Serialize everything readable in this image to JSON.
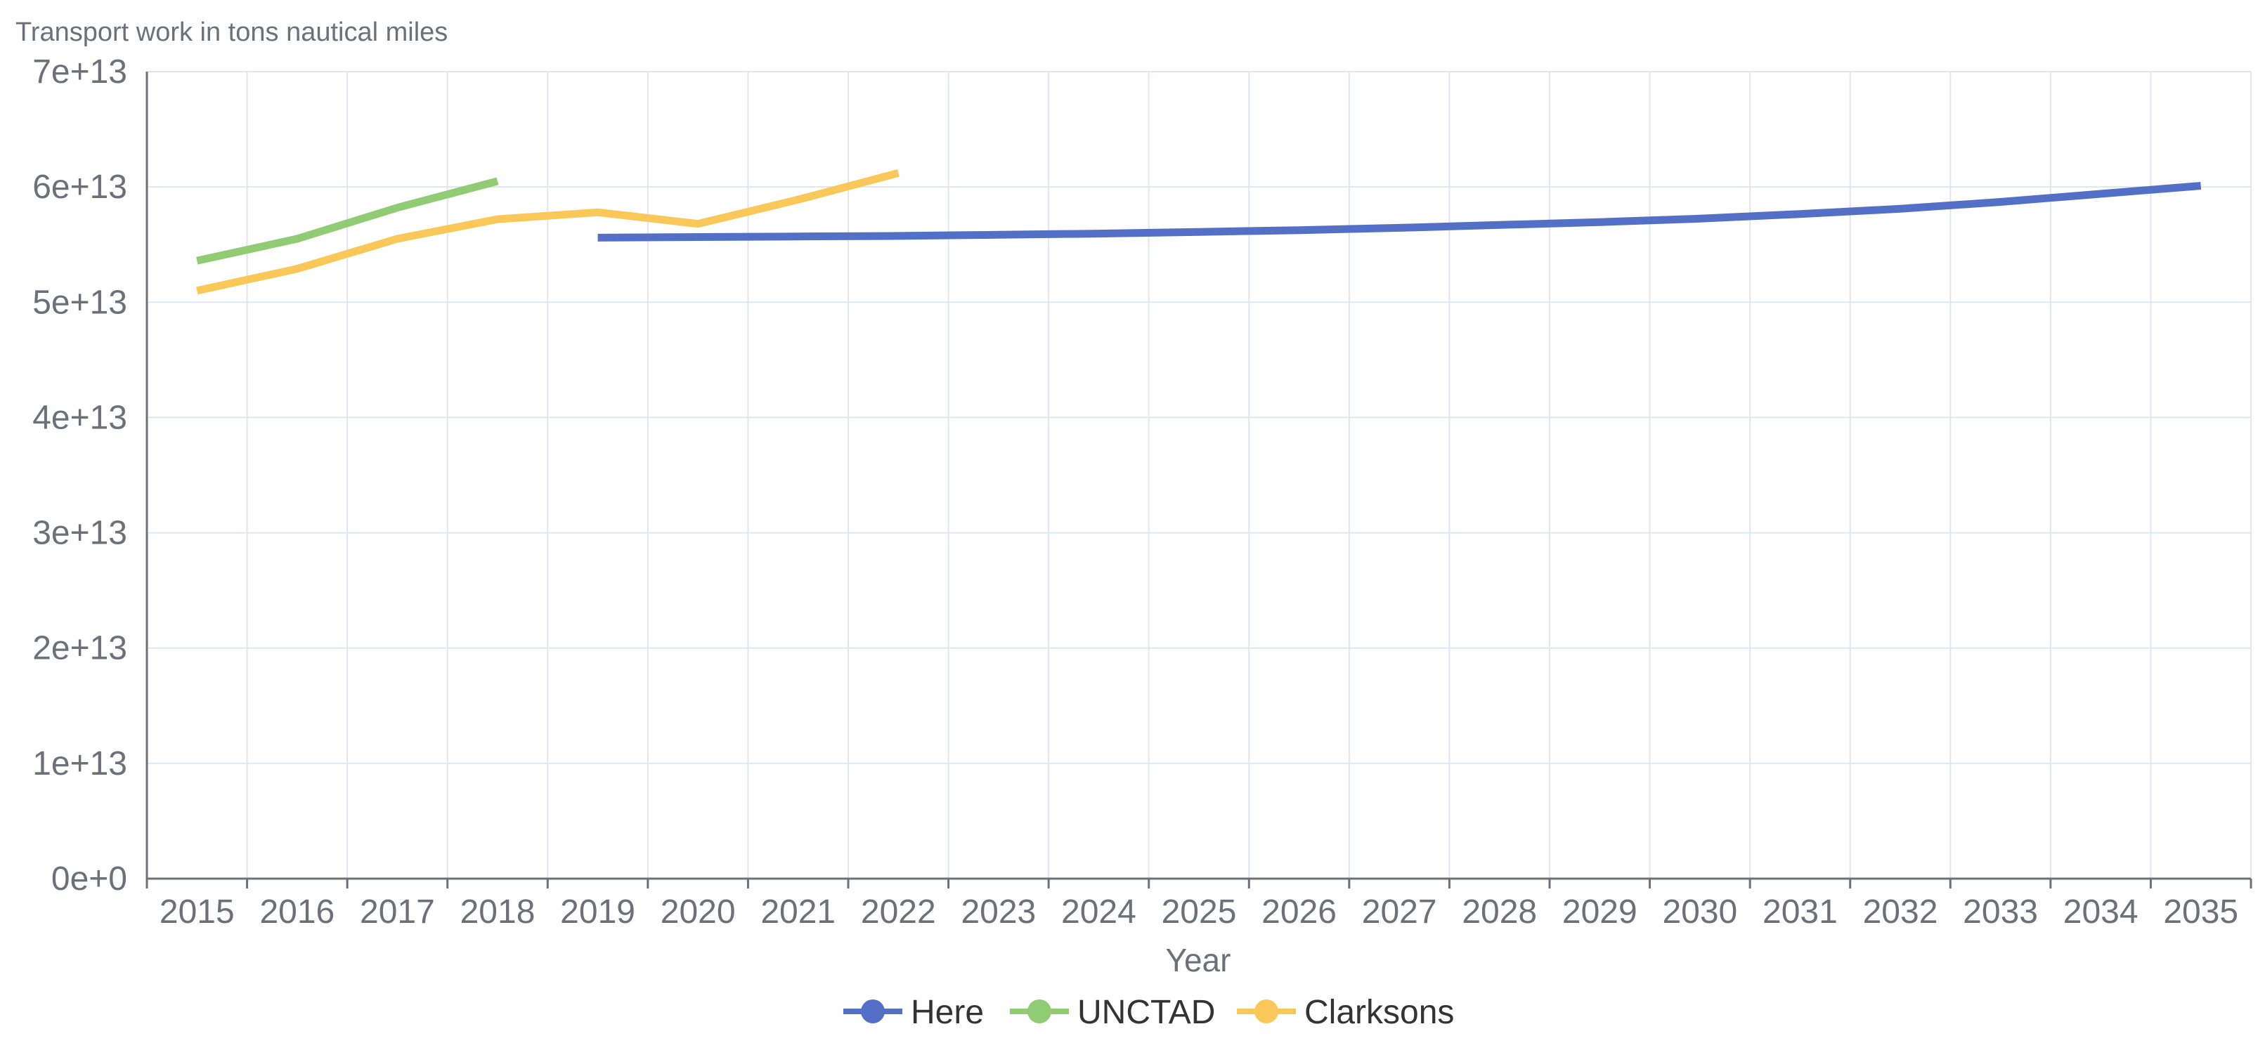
{
  "chart_data": {
    "type": "line",
    "ylabel": "Transport work in tons nautical miles",
    "xlabel": "Year",
    "categories": [
      "2015",
      "2016",
      "2017",
      "2018",
      "2019",
      "2020",
      "2021",
      "2022",
      "2023",
      "2024",
      "2025",
      "2026",
      "2027",
      "2028",
      "2029",
      "2030",
      "2031",
      "2032",
      "2033",
      "2034",
      "2035"
    ],
    "ylim": [
      0,
      70000000000000
    ],
    "yticks": [
      0,
      10000000000000,
      20000000000000,
      30000000000000,
      40000000000000,
      50000000000000,
      60000000000000,
      70000000000000
    ],
    "ytick_labels": [
      "0e+0",
      "1e+13",
      "2e+13",
      "3e+13",
      "4e+13",
      "5e+13",
      "6e+13",
      "7e+13"
    ],
    "grid": true,
    "legend_position": "bottom-center",
    "series": [
      {
        "name": "Here",
        "color": "#5470c6",
        "values": [
          null,
          null,
          null,
          null,
          55600000000000,
          55650000000000,
          55700000000000,
          55750000000000,
          55850000000000,
          55950000000000,
          56100000000000,
          56250000000000,
          56450000000000,
          56700000000000,
          56950000000000,
          57250000000000,
          57650000000000,
          58100000000000,
          58700000000000,
          59400000000000,
          60100000000000
        ]
      },
      {
        "name": "UNCTAD",
        "color": "#91cc75",
        "values": [
          53600000000000,
          55500000000000,
          58200000000000,
          60500000000000,
          null,
          null,
          null,
          null,
          null,
          null,
          null,
          null,
          null,
          null,
          null,
          null,
          null,
          null,
          null,
          null,
          null
        ]
      },
      {
        "name": "Clarksons",
        "color": "#fac858",
        "values": [
          51000000000000,
          52900000000000,
          55500000000000,
          57200000000000,
          57800000000000,
          56800000000000,
          58900000000000,
          61200000000000,
          null,
          null,
          null,
          null,
          null,
          null,
          null,
          null,
          null,
          null,
          null,
          null,
          null
        ]
      }
    ]
  }
}
